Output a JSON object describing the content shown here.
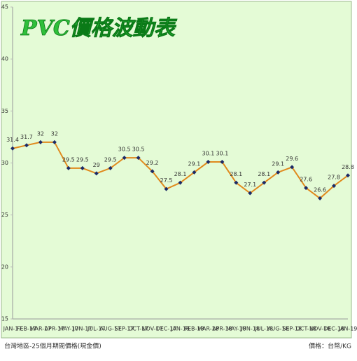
{
  "chart_data": {
    "type": "line",
    "title": "PVC價格波動表",
    "categories": [
      "JAN-17",
      "FEB-17",
      "MAR-17",
      "APR-17",
      "MAY-17",
      "JUN-17",
      "JUL-17",
      "AUG-17",
      "SEP-17",
      "OCT-17",
      "NOV-17",
      "DEC-17",
      "JAN-18",
      "FEB-18",
      "MAR-18",
      "APR-18",
      "MAY-18",
      "JUN-18",
      "JUL-18",
      "AUG-18",
      "SEP-18",
      "OCT-18",
      "NOV-18",
      "DEC-18",
      "JAN-19"
    ],
    "values": [
      31.4,
      31.7,
      32,
      32,
      29.5,
      29.5,
      29,
      29.5,
      30.5,
      30.5,
      29.2,
      27.5,
      28.1,
      29.1,
      30.1,
      30.1,
      28.1,
      27.1,
      28.1,
      29.1,
      29.6,
      27.6,
      26.6,
      27.8,
      28.8
    ],
    "color": "#e0891c",
    "marker_color": "#1c2a66",
    "ylim": [
      15,
      45
    ],
    "yticks": [
      15,
      20,
      25,
      30,
      35,
      40,
      45
    ],
    "grid": false,
    "source_note": "台灣地區-25個月期間價格(現金價)",
    "unit_note": "價格：台幣/KG"
  }
}
